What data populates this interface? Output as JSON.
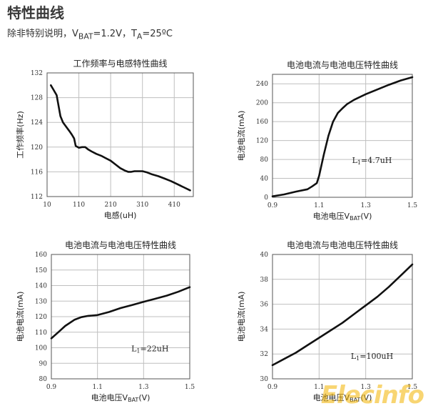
{
  "header": {
    "title": "特性曲线",
    "conditions_a": "除非特别说明，V",
    "conditions_a_sub": "BAT",
    "conditions_b": "=1.2V，T",
    "conditions_b_sub": "A",
    "conditions_c": "=25ºC"
  },
  "watermark": "Elecinfo",
  "colors": {
    "line": "#111111",
    "grid": "#bfbfbf",
    "axis": "#555555"
  },
  "chart_data": [
    {
      "type": "line",
      "title": "工作频率与电感特性曲线",
      "xlabel": "电感(uH)",
      "ylabel": "工作频率(Hz)",
      "xlim": [
        10,
        470
      ],
      "ylim": [
        112,
        132
      ],
      "xticks": [
        10,
        110,
        210,
        310,
        410
      ],
      "yticks": [
        112,
        116,
        120,
        124,
        128,
        132
      ],
      "x_tick_labels": [
        "10",
        "110",
        "210",
        "310",
        "410"
      ],
      "y_tick_labels": [
        "112",
        "116",
        "120",
        "124",
        "128",
        "132"
      ],
      "series": [
        {
          "x": [
            22,
            30,
            40,
            45,
            52,
            60,
            70,
            80,
            88,
            95,
            100,
            110,
            120,
            130,
            140,
            150,
            165,
            180,
            195,
            210,
            225,
            240,
            255,
            265,
            275,
            285,
            295,
            310,
            325,
            340,
            360,
            380,
            400,
            420,
            440,
            460
          ],
          "y": [
            130.0,
            129.3,
            128.4,
            127.0,
            125.0,
            124.0,
            123.3,
            122.6,
            122.0,
            121.4,
            120.2,
            119.9,
            120.0,
            120.0,
            119.6,
            119.3,
            118.9,
            118.6,
            118.2,
            117.8,
            117.2,
            116.6,
            116.2,
            116.0,
            116.0,
            116.1,
            116.1,
            116.1,
            115.9,
            115.6,
            115.3,
            114.9,
            114.5,
            114.0,
            113.5,
            113.0
          ]
        }
      ]
    },
    {
      "type": "line",
      "title": "电池电流与电池电压特性曲线",
      "xlabel_main": "电池电压V",
      "xlabel_sub": "BAT",
      "xlabel_tail": "(V)",
      "ylabel": "电池电流(mA)",
      "annotation_main": "L",
      "annotation_sub": "1",
      "annotation_tail": "=4.7uH",
      "xlim": [
        0.9,
        1.5
      ],
      "ylim": [
        0,
        260
      ],
      "xticks": [
        0.9,
        1.1,
        1.3,
        1.5
      ],
      "yticks": [
        0,
        40,
        80,
        120,
        160,
        200,
        240
      ],
      "x_tick_labels": [
        "0.9",
        "1.1",
        "1.3",
        "1.5"
      ],
      "y_tick_labels": [
        "0",
        "40",
        "80",
        "120",
        "160",
        "200",
        "240"
      ],
      "series": [
        {
          "x": [
            0.9,
            0.95,
            1.0,
            1.05,
            1.07,
            1.09,
            1.1,
            1.12,
            1.14,
            1.16,
            1.18,
            1.2,
            1.22,
            1.25,
            1.3,
            1.35,
            1.4,
            1.45,
            1.5
          ],
          "y": [
            2,
            6,
            12,
            17,
            23,
            30,
            45,
            90,
            130,
            160,
            178,
            188,
            197,
            206,
            218,
            228,
            238,
            247,
            254
          ]
        }
      ]
    },
    {
      "type": "line",
      "title": "电池电流与电池电压特性曲线",
      "xlabel_main": "电池电压V",
      "xlabel_sub": "BAT",
      "xlabel_tail": "(V)",
      "ylabel": "电池电流(mA)",
      "annotation_main": "L",
      "annotation_sub": "1",
      "annotation_tail": "=22uH",
      "xlim": [
        0.9,
        1.5
      ],
      "ylim": [
        80,
        160
      ],
      "xticks": [
        0.9,
        1.1,
        1.3,
        1.5
      ],
      "yticks": [
        80,
        90,
        100,
        110,
        120,
        130,
        140,
        150,
        160
      ],
      "x_tick_labels": [
        "0.9",
        "1.1",
        "1.3",
        "1.5"
      ],
      "y_tick_labels": [
        "80",
        "90",
        "100",
        "110",
        "120",
        "130",
        "140",
        "150",
        "160"
      ],
      "series": [
        {
          "x": [
            0.9,
            0.93,
            0.96,
            1.0,
            1.03,
            1.06,
            1.1,
            1.15,
            1.2,
            1.25,
            1.3,
            1.35,
            1.4,
            1.45,
            1.5
          ],
          "y": [
            106,
            110,
            114,
            118,
            119.7,
            120.5,
            121,
            123,
            125.5,
            127.5,
            129.5,
            131.5,
            133.5,
            136,
            139
          ]
        }
      ]
    },
    {
      "type": "line",
      "title": "电池电流与电池电压特性曲线",
      "xlabel_main": "电池电压V",
      "xlabel_sub": "BAT",
      "xlabel_tail": "(V)",
      "ylabel": "电池电流(mA)",
      "annotation_main": "L",
      "annotation_sub": "1",
      "annotation_tail": "=100uH",
      "xlim": [
        0.9,
        1.5
      ],
      "ylim": [
        30,
        40
      ],
      "xticks": [
        0.9,
        1.1,
        1.3,
        1.5
      ],
      "yticks": [
        30,
        32,
        34,
        36,
        38,
        40
      ],
      "x_tick_labels": [
        "0.9",
        "1.1",
        "1.3",
        "1.5"
      ],
      "y_tick_labels": [
        "30",
        "32",
        "34",
        "36",
        "38",
        "40"
      ],
      "series": [
        {
          "x": [
            0.9,
            0.95,
            1.0,
            1.05,
            1.1,
            1.15,
            1.2,
            1.25,
            1.3,
            1.35,
            1.4,
            1.45,
            1.5
          ],
          "y": [
            31.1,
            31.6,
            32.1,
            32.7,
            33.3,
            33.9,
            34.5,
            35.2,
            35.9,
            36.6,
            37.4,
            38.3,
            39.2
          ]
        }
      ]
    }
  ]
}
